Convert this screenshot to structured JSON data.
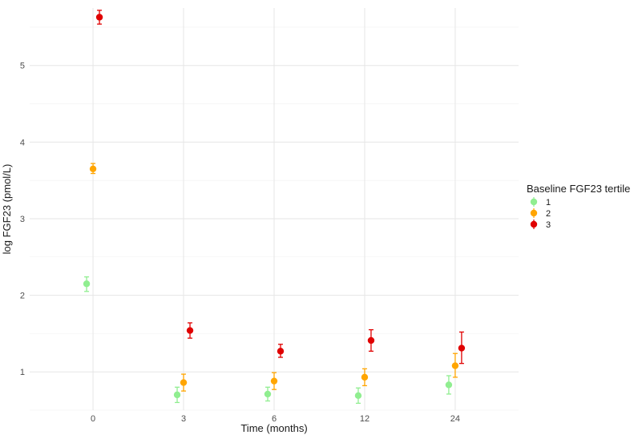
{
  "chart_data": {
    "type": "scatter",
    "title": "",
    "xlabel": "Time (months)",
    "ylabel": "log FGF23 (pmol/L)",
    "categories": [
      "0",
      "3",
      "6",
      "12",
      "24"
    ],
    "yticks": [
      "1",
      "2",
      "3",
      "4",
      "5"
    ],
    "ylim": [
      0.5,
      5.75
    ],
    "grid": true,
    "error_bars": true,
    "legend": {
      "title": "Baseline FGF23 tertile",
      "position": "right"
    },
    "series": [
      {
        "name": "1",
        "color": "#90EE90",
        "values": [
          2.15,
          0.7,
          0.71,
          0.69,
          0.83
        ],
        "lower": [
          2.05,
          0.6,
          0.62,
          0.59,
          0.71
        ],
        "upper": [
          2.24,
          0.8,
          0.8,
          0.79,
          0.95
        ]
      },
      {
        "name": "2",
        "color": "#FFA500",
        "values": [
          3.65,
          0.86,
          0.88,
          0.93,
          1.08
        ],
        "lower": [
          3.59,
          0.75,
          0.77,
          0.82,
          0.93
        ],
        "upper": [
          3.72,
          0.97,
          0.99,
          1.04,
          1.24
        ]
      },
      {
        "name": "3",
        "color": "#E00000",
        "values": [
          5.63,
          1.54,
          1.27,
          1.41,
          1.31
        ],
        "lower": [
          5.54,
          1.44,
          1.19,
          1.27,
          1.11
        ],
        "upper": [
          5.72,
          1.64,
          1.36,
          1.55,
          1.52
        ]
      }
    ]
  }
}
